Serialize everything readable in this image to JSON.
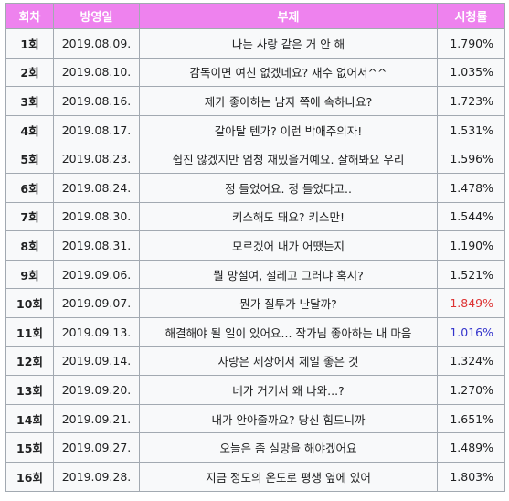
{
  "table": {
    "headers": {
      "episode": "회차",
      "airdate": "방영일",
      "subtitle": "부제",
      "rating": "시청률"
    },
    "colors": {
      "header_bg": "#ee82ee",
      "max_rating": "#d33",
      "min_rating": "#3333cc"
    },
    "rows": [
      {
        "episode": "1회",
        "airdate": "2019.08.09.",
        "subtitle": "나는 사랑 같은 거 안 해",
        "rating": "1.790%",
        "highlight": ""
      },
      {
        "episode": "2회",
        "airdate": "2019.08.10.",
        "subtitle": "감독이면 여친 없겠네요? 재수 없어서^^",
        "rating": "1.035%",
        "highlight": ""
      },
      {
        "episode": "3회",
        "airdate": "2019.08.16.",
        "subtitle": "제가 좋아하는 남자 쪽에 속하나요?",
        "rating": "1.723%",
        "highlight": ""
      },
      {
        "episode": "4회",
        "airdate": "2019.08.17.",
        "subtitle": "갈아탈 텐가? 이런 박애주의자!",
        "rating": "1.531%",
        "highlight": ""
      },
      {
        "episode": "5회",
        "airdate": "2019.08.23.",
        "subtitle": "쉽진 않겠지만 엄청 재밌을거예요. 잘해봐요 우리",
        "rating": "1.596%",
        "highlight": ""
      },
      {
        "episode": "6회",
        "airdate": "2019.08.24.",
        "subtitle": "정 들었어요. 정 들었다고..",
        "rating": "1.478%",
        "highlight": ""
      },
      {
        "episode": "7회",
        "airdate": "2019.08.30.",
        "subtitle": "키스해도 돼요? 키스만!",
        "rating": "1.544%",
        "highlight": ""
      },
      {
        "episode": "8회",
        "airdate": "2019.08.31.",
        "subtitle": "모르겠어 내가 어땠는지",
        "rating": "1.190%",
        "highlight": ""
      },
      {
        "episode": "9회",
        "airdate": "2019.09.06.",
        "subtitle": "뭘 망설여, 설레고 그러냐 혹시?",
        "rating": "1.521%",
        "highlight": ""
      },
      {
        "episode": "10회",
        "airdate": "2019.09.07.",
        "subtitle": "뭔가 질투가 난달까?",
        "rating": "1.849%",
        "highlight": "max"
      },
      {
        "episode": "11회",
        "airdate": "2019.09.13.",
        "subtitle": "해결해야 될 일이 있어요... 작가님 좋아하는 내 마음",
        "rating": "1.016%",
        "highlight": "min"
      },
      {
        "episode": "12회",
        "airdate": "2019.09.14.",
        "subtitle": "사랑은 세상에서 제일 좋은 것",
        "rating": "1.324%",
        "highlight": ""
      },
      {
        "episode": "13회",
        "airdate": "2019.09.20.",
        "subtitle": "네가 거기서 왜 나와...?",
        "rating": "1.270%",
        "highlight": ""
      },
      {
        "episode": "14회",
        "airdate": "2019.09.21.",
        "subtitle": "내가 안아줄까요? 당신 힘드니까",
        "rating": "1.651%",
        "highlight": ""
      },
      {
        "episode": "15회",
        "airdate": "2019.09.27.",
        "subtitle": "오늘은 좀 실망을 해야겠어요",
        "rating": "1.489%",
        "highlight": ""
      },
      {
        "episode": "16회",
        "airdate": "2019.09.28.",
        "subtitle": "지금 정도의 온도로 평생 옆에 있어",
        "rating": "1.803%",
        "highlight": ""
      }
    ]
  }
}
